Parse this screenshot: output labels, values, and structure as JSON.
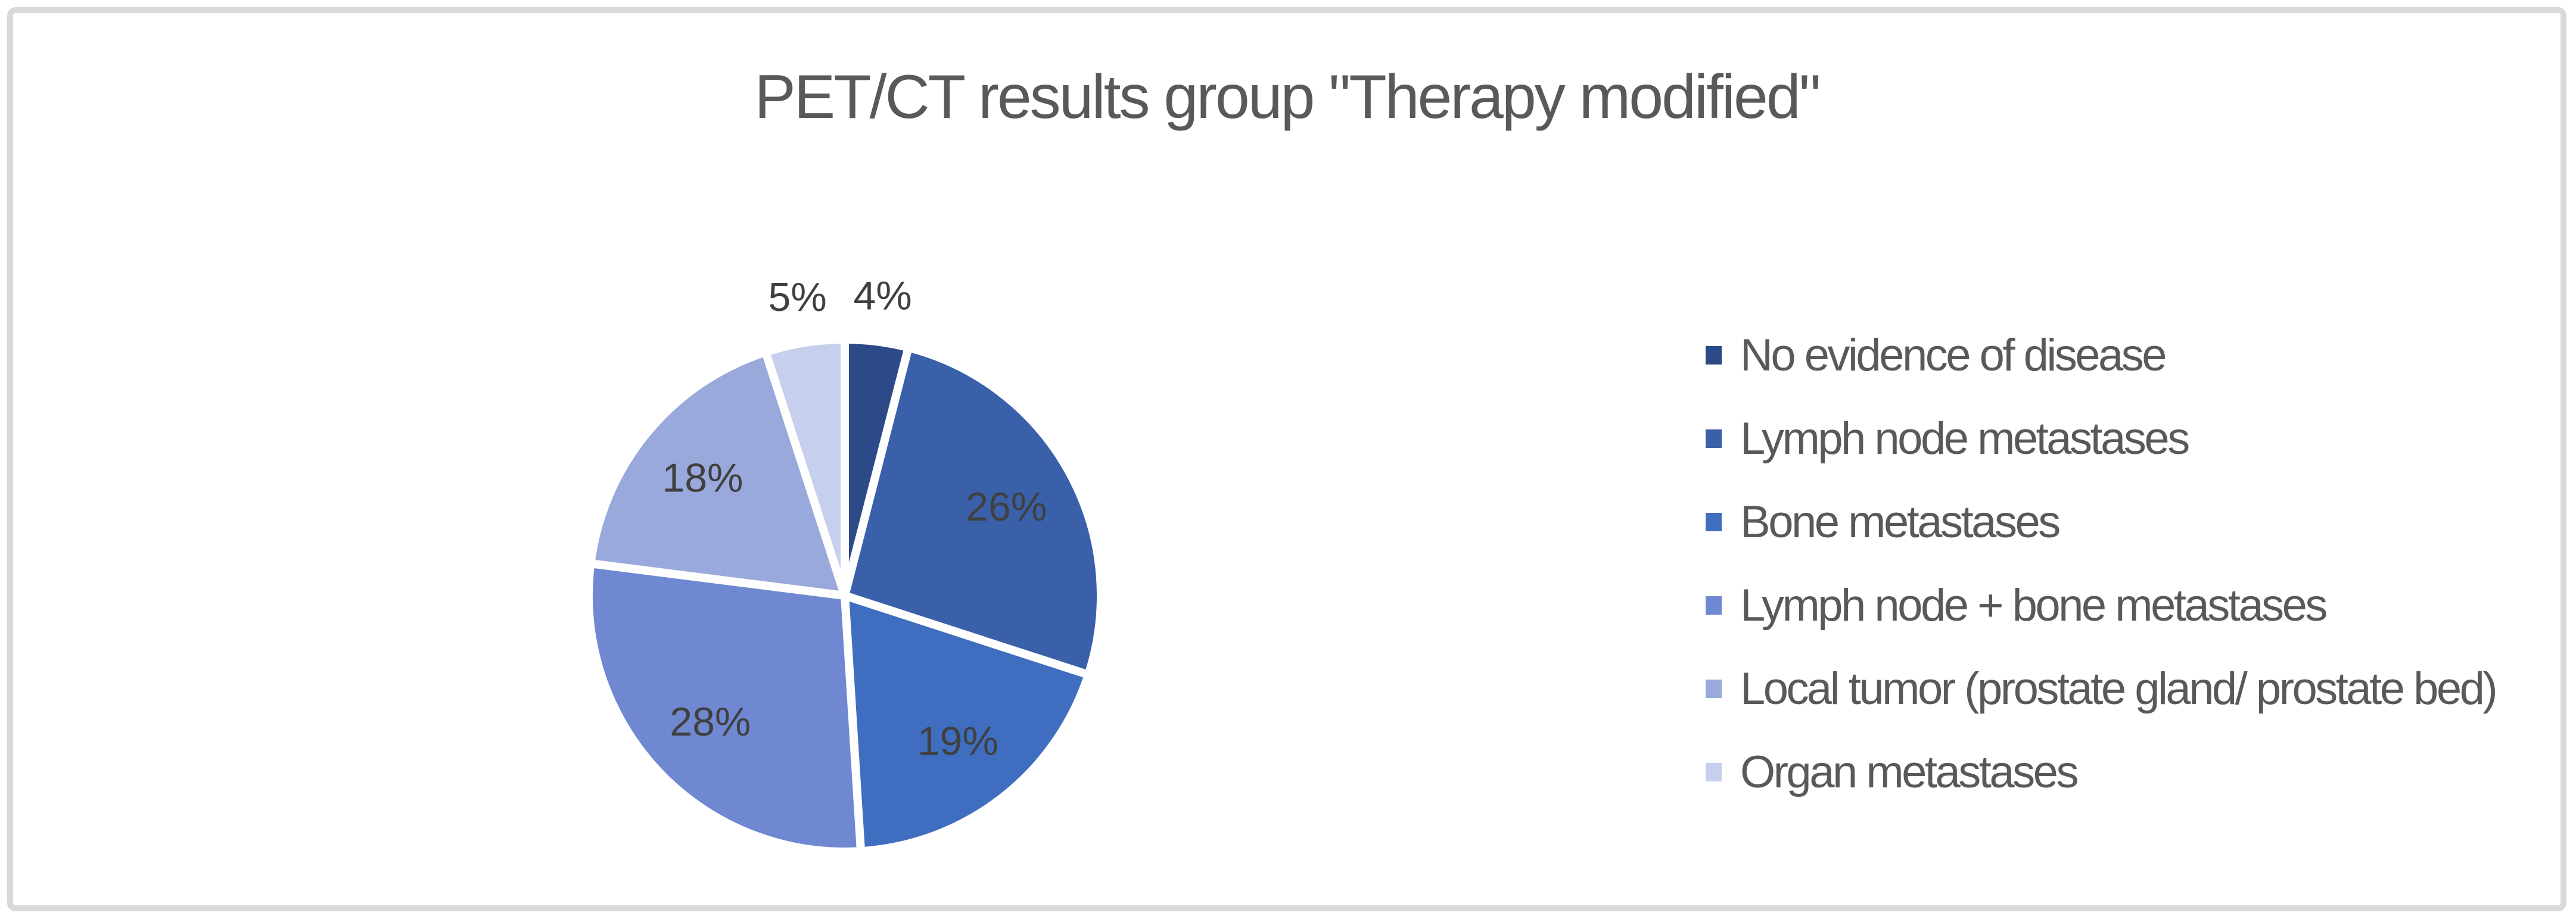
{
  "chart": {
    "title": "PET/CT results group \"Therapy modified\""
  },
  "chart_data": {
    "type": "pie",
    "title": "PET/CT results group \"Therapy modified\"",
    "units": "percent",
    "start_angle_deg": 0,
    "direction": "clockwise",
    "legend_position": "right",
    "data_labels": "percent",
    "series": [
      {
        "name": "No evidence of disease",
        "value": 4,
        "percent_label": "4%",
        "color": "#2C4A87",
        "label_position": "outside"
      },
      {
        "name": "Lymph node metastases",
        "value": 26,
        "percent_label": "26%",
        "color": "#3A60AA",
        "label_position": "inside"
      },
      {
        "name": "Bone metastases",
        "value": 19,
        "percent_label": "19%",
        "color": "#3F6EC0",
        "label_position": "inside"
      },
      {
        "name": "Lymph node + bone metastases",
        "value": 28,
        "percent_label": "28%",
        "color": "#7088D1",
        "label_position": "inside"
      },
      {
        "name": "Local tumor (prostate gland/ prostate bed)",
        "value": 18,
        "percent_label": "18%",
        "color": "#9AA9DB",
        "label_position": "inside"
      },
      {
        "name": "Organ metastases",
        "value": 5,
        "percent_label": "5%",
        "color": "#C6CFEB",
        "label_position": "outside"
      }
    ]
  },
  "colors": {
    "title_text": "#595959",
    "legend_text": "#595959",
    "data_label_text": "#404040",
    "chart_border": "#D9D9D9",
    "background": "#FFFFFF",
    "slice_separator": "#FFFFFF"
  }
}
